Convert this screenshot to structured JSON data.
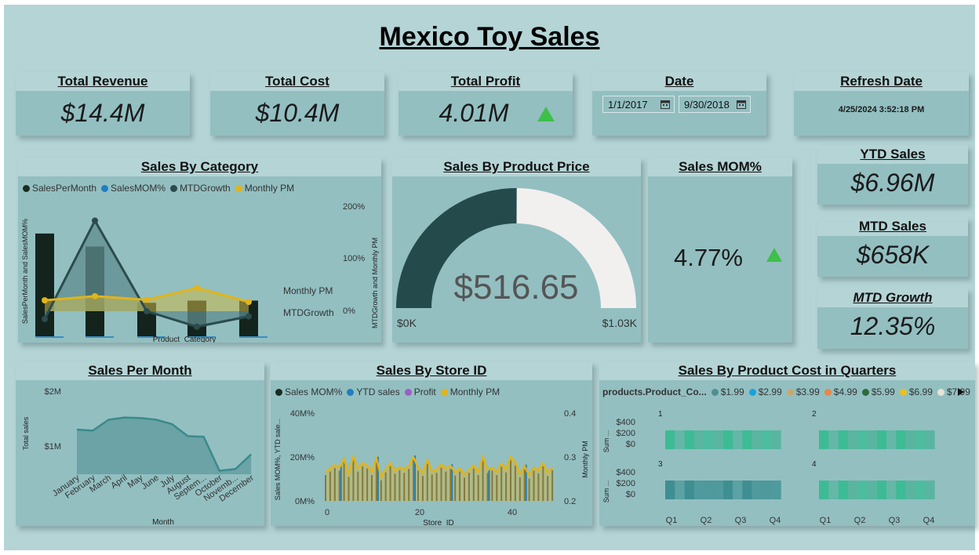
{
  "title": "Mexico Toy Sales",
  "kpis": {
    "total_revenue": {
      "label": "Total Revenue",
      "value": "$14.4M"
    },
    "total_cost": {
      "label": "Total Cost",
      "value": "$10.4M"
    },
    "total_profit": {
      "label": "Total Profit",
      "value": "4.01M"
    },
    "date": {
      "label": "Date",
      "start": "1/1/2017",
      "end": "9/30/2018"
    },
    "refresh": {
      "label": "Refresh Date",
      "value": "4/25/2024 3:52:18 PM"
    },
    "ytd_sales": {
      "label": "YTD Sales",
      "value": "$6.96M"
    },
    "mtd_sales": {
      "label": "MTD Sales",
      "value": "$658K"
    },
    "mtd_growth": {
      "label": "MTD Growth",
      "value": "12.35%"
    },
    "sales_mom": {
      "label": "Sales MOM%",
      "value": "4.77%"
    }
  },
  "colors": {
    "up_arrow": "#3fbf4a",
    "dark_bar": "#14231c",
    "gauge_fill": "#244a4c",
    "gauge_empty": "#f2f0ef",
    "gold": "#e8b21c"
  },
  "chart_data": [
    {
      "type": "bar",
      "title": "Sales By Category",
      "xlabel": "Product_Category",
      "ylabel": "SalesPerMonth and SalesMOM%",
      "y2label": "MTDGrowth and Monthly PM",
      "legend": [
        "SalesPerMonth",
        "SalesMOM%",
        "MTDGrowth",
        "Monthly PM"
      ],
      "legend_colors": [
        "#1b2b22",
        "#1f7ec2",
        "#2b4b4d",
        "#e0b41c"
      ],
      "y2_ticks": [
        "200%",
        "100%",
        "0%"
      ],
      "line_labels": [
        "Monthly PM",
        "MTDGrowth"
      ],
      "series": [
        {
          "name": "SalesPerMonth",
          "values": [
            0.95,
            0.83,
            0.31,
            0.33,
            0.33
          ]
        },
        {
          "name": "MTDGrowth",
          "values": [
            -0.15,
            1.75,
            0.0,
            -0.3,
            -0.1
          ]
        },
        {
          "name": "Monthly PM",
          "values": [
            0.21,
            0.29,
            0.22,
            0.45,
            0.18
          ]
        }
      ]
    },
    {
      "type": "gauge",
      "title": "Sales By Product Price",
      "value": 516.65,
      "value_label": "$516.65",
      "min_label": "$0K",
      "max_label": "$1.03K",
      "max": 1030
    },
    {
      "type": "area",
      "title": "Sales Per Month",
      "xlabel": "Month",
      "ylabel": "Total sales",
      "y_ticks": [
        "$2M",
        "$1M"
      ],
      "categories": [
        "January",
        "February",
        "March",
        "April",
        "May",
        "June",
        "July",
        "August",
        "Septem...",
        "October",
        "Novemb...",
        "December"
      ],
      "values": [
        1.3,
        1.28,
        1.48,
        1.52,
        1.51,
        1.48,
        1.4,
        1.18,
        1.17,
        0.55,
        0.58,
        0.85
      ]
    },
    {
      "type": "bar",
      "title": "Sales By Store ID",
      "xlabel": "Store_ID",
      "ylabel": "Sales MOM%, YTD sale...",
      "y2label": "Monthly PM",
      "legend": [
        "Sales MOM%",
        "YTD sales",
        "Profit",
        "Monthly PM"
      ],
      "legend_colors": [
        "#1b2b22",
        "#1f7ec2",
        "#9b5fc7",
        "#e0b41c"
      ],
      "y_ticks": [
        "40M%",
        "20M%",
        "0M%"
      ],
      "y2_ticks": [
        "0.4",
        "0.3",
        "0.2"
      ],
      "x_ticks": [
        "0",
        "20",
        "40"
      ],
      "monthly_pm": [
        0.266,
        0.274,
        0.282,
        0.276,
        0.295,
        0.262,
        0.301,
        0.274,
        0.286,
        0.281,
        0.266,
        0.297,
        0.254,
        0.272,
        0.286,
        0.269,
        0.277,
        0.271,
        0.28,
        0.3,
        0.276,
        0.264,
        0.293,
        0.267,
        0.271,
        0.283,
        0.274,
        0.28,
        0.265,
        0.274,
        0.26,
        0.271,
        0.281,
        0.266,
        0.3,
        0.271,
        0.276,
        0.266,
        0.285,
        0.272,
        0.3,
        0.288,
        0.261,
        0.279,
        0.258,
        0.276,
        0.27,
        0.286,
        0.264,
        0.277
      ]
    },
    {
      "type": "heatmap",
      "title": "Sales By Product Cost in Quarters",
      "legend_title": "products.Product_Co...",
      "legend": [
        "$1.99",
        "$2.99",
        "$3.99",
        "$4.99",
        "$5.99",
        "$6.99",
        "$7.99"
      ],
      "legend_colors": [
        "#4f8f8f",
        "#1aa3d9",
        "#c9a96a",
        "#e8864a",
        "#2e6b3a",
        "#e8c21a",
        "#e6e2d6"
      ],
      "panels": [
        "1",
        "2",
        "3",
        "4"
      ],
      "y_ticks": [
        "$400",
        "$200",
        "$0"
      ],
      "ylabel": "Sum ...",
      "x_ticks": [
        "Q1",
        "Q2",
        "Q3",
        "Q4"
      ]
    }
  ]
}
